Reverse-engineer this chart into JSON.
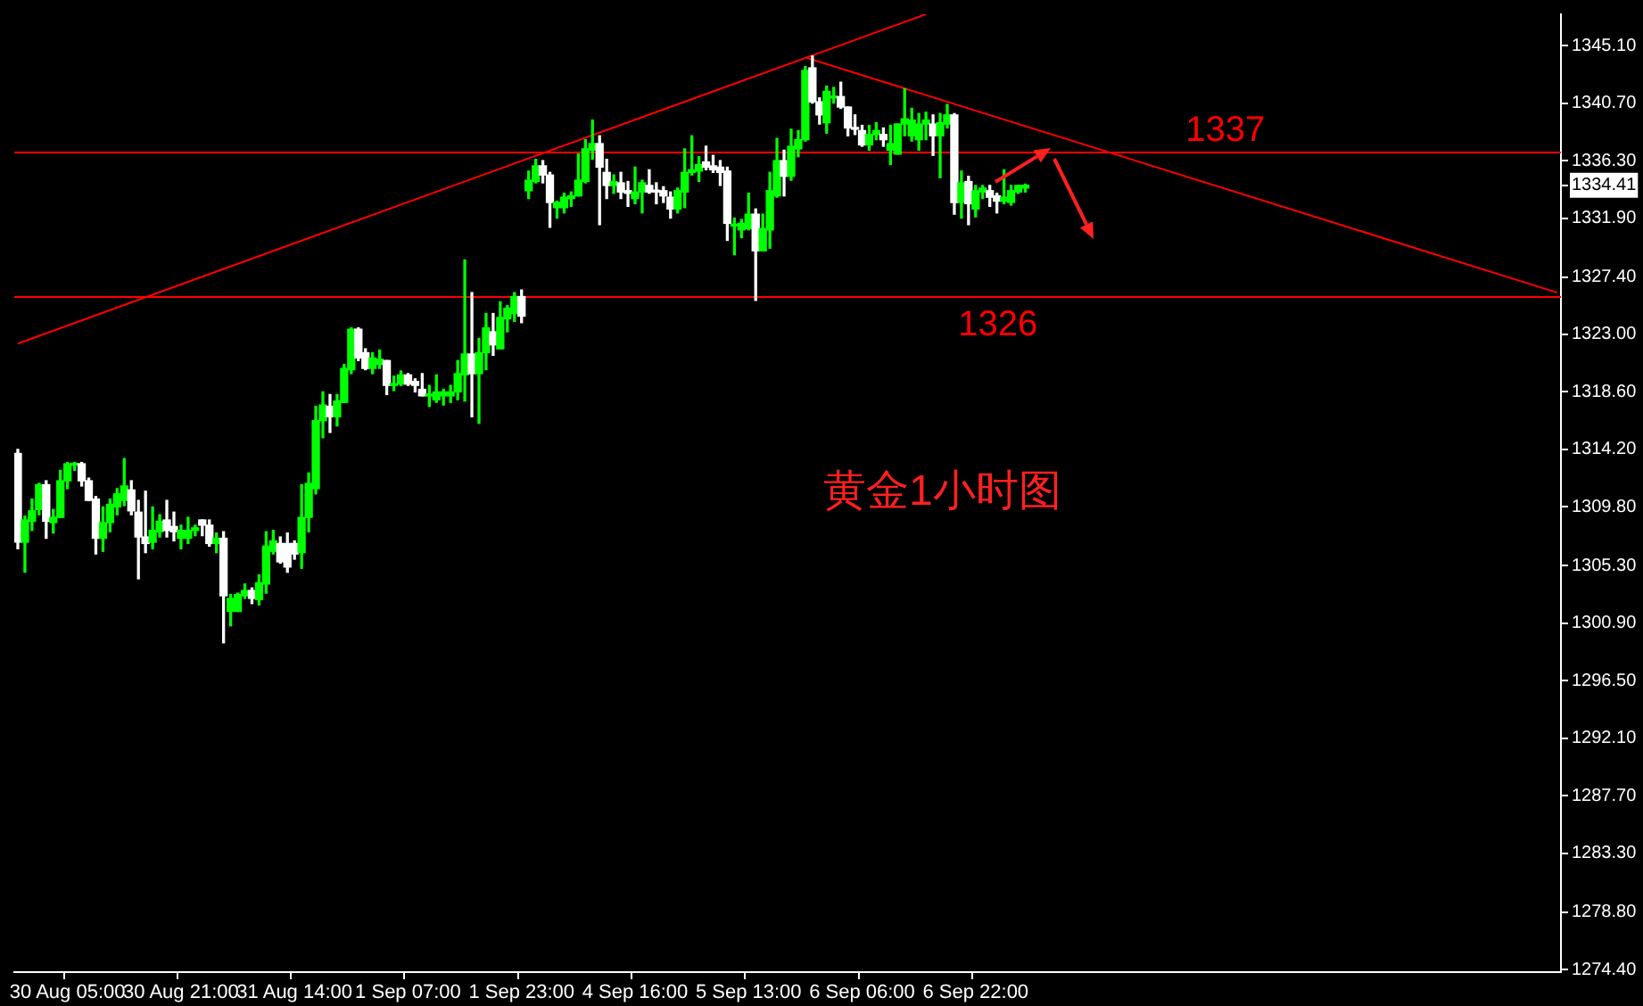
{
  "chart_data": {
    "type": "candlestick",
    "annotations": [
      "黄金1小时图"
    ],
    "categories": [
      null,
      null,
      null,
      null,
      null,
      null,
      null,
      "30 Aug 05:00",
      null,
      null,
      null,
      null,
      null,
      null,
      null,
      null,
      null,
      null,
      null,
      null,
      null,
      null,
      null,
      "30 Aug 21:00",
      null,
      null,
      null,
      null,
      null,
      null,
      null,
      null,
      null,
      null,
      null,
      null,
      null,
      null,
      null,
      "31 Aug 14:00",
      null,
      null,
      null,
      null,
      null,
      null,
      null,
      null,
      null,
      null,
      null,
      null,
      null,
      null,
      null,
      "1 Sep 07:00",
      null,
      null,
      null,
      null,
      null,
      null,
      null,
      null,
      null,
      null,
      null,
      null,
      null,
      null,
      null,
      "1 Sep 23:00",
      null,
      null,
      null,
      null,
      null,
      null,
      null,
      null,
      null,
      null,
      null,
      null,
      null,
      null,
      null,
      "4 Sep 16:00",
      null,
      null,
      null,
      null,
      null,
      null,
      null,
      null,
      null,
      null,
      null,
      null,
      null,
      null,
      null,
      "5 Sep 13:00",
      null,
      null,
      null,
      null,
      null,
      null,
      null,
      null,
      null,
      null,
      null,
      null,
      null,
      null,
      null,
      "6 Sep 06:00",
      null,
      null,
      null,
      null,
      null,
      null,
      null,
      null,
      null,
      null,
      null,
      null,
      null,
      null,
      null,
      "6 Sep 22:00",
      null,
      null,
      null,
      null,
      null,
      null,
      null,
      null,
      null,
      null,
      null,
      null,
      null,
      null,
      null,
      null,
      null,
      null,
      null,
      null,
      null,
      null,
      null,
      null,
      null,
      null,
      null,
      null,
      null,
      null,
      null,
      null,
      null,
      null,
      null,
      null,
      null,
      null,
      null,
      null,
      null,
      null,
      null,
      null,
      null,
      null,
      null,
      null,
      null,
      null,
      null,
      null,
      null,
      null,
      null,
      null,
      null,
      null,
      null,
      null,
      null,
      null,
      null,
      null,
      null,
      null,
      null,
      null,
      null,
      null,
      null,
      null,
      null,
      null,
      null,
      null,
      null,
      null,
      null,
      null,
      null,
      null
    ],
    "ohlc": [
      [
        1313.9,
        1314.2,
        1306.6,
        1307.1
      ],
      [
        1307.1,
        1309.1,
        1304.8,
        1308.8
      ],
      [
        1308.7,
        1310.4,
        1308.0,
        1309.5
      ],
      [
        1309.6,
        1311.6,
        1309.2,
        1311.5
      ],
      [
        1311.5,
        1311.8,
        1307.4,
        1308.7
      ],
      [
        1308.6,
        1309.6,
        1307.8,
        1309.0
      ],
      [
        1309.0,
        1312.6,
        1309.0,
        1311.8
      ],
      [
        1311.8,
        1313.2,
        1311.2,
        1313.1
      ],
      [
        1313.0,
        1313.2,
        1312.6,
        1313.1
      ],
      [
        1313.1,
        1313.2,
        1311.4,
        1311.8
      ],
      [
        1311.8,
        1312.0,
        1310.3,
        1310.3
      ],
      [
        1310.4,
        1310.6,
        1306.2,
        1307.4
      ],
      [
        1307.4,
        1309.8,
        1306.4,
        1308.6
      ],
      [
        1308.6,
        1310.4,
        1307.9,
        1310.0
      ],
      [
        1309.8,
        1311.2,
        1309.2,
        1310.8
      ],
      [
        1310.3,
        1313.5,
        1309.9,
        1311.4
      ],
      [
        1311.1,
        1311.8,
        1309.2,
        1309.5
      ],
      [
        1309.4,
        1310.3,
        1304.3,
        1307.5
      ],
      [
        1307.5,
        1311.0,
        1306.3,
        1307.0
      ],
      [
        1307.1,
        1309.8,
        1306.6,
        1308.0
      ],
      [
        1307.9,
        1309.2,
        1307.5,
        1308.7
      ],
      [
        1308.8,
        1310.3,
        1307.5,
        1308.0
      ],
      [
        1308.3,
        1309.4,
        1307.2,
        1307.9
      ],
      [
        1307.4,
        1308.4,
        1306.6,
        1308.0
      ],
      [
        1307.4,
        1309.0,
        1307.0,
        1308.0
      ],
      [
        1308.0,
        1308.4,
        1307.6,
        1308.2
      ],
      [
        1308.8,
        1308.8,
        1307.6,
        1308.4
      ],
      [
        1308.4,
        1308.8,
        1306.8,
        1307.0
      ],
      [
        1307.0,
        1307.8,
        1306.3,
        1307.4
      ],
      [
        1307.4,
        1307.9,
        1299.4,
        1303.0
      ],
      [
        1301.8,
        1303.1,
        1300.7,
        1302.8
      ],
      [
        1301.8,
        1303.2,
        1301.8,
        1303.1
      ],
      [
        1303.0,
        1303.9,
        1302.8,
        1303.4
      ],
      [
        1303.4,
        1303.6,
        1302.4,
        1302.8
      ],
      [
        1302.7,
        1304.6,
        1302.3,
        1304.0
      ],
      [
        1303.9,
        1307.9,
        1303.2,
        1306.8
      ],
      [
        1306.4,
        1308.0,
        1306.2,
        1307.2
      ],
      [
        1307.0,
        1307.5,
        1305.5,
        1305.6
      ],
      [
        1307.0,
        1307.8,
        1304.8,
        1305.2
      ],
      [
        1307.0,
        1307.2,
        1305.8,
        1306.2
      ],
      [
        1306.3,
        1311.5,
        1305.1,
        1309.0
      ],
      [
        1309.0,
        1312.4,
        1307.9,
        1311.6
      ],
      [
        1311.2,
        1317.5,
        1310.8,
        1316.4
      ],
      [
        1316.4,
        1318.6,
        1315.1,
        1317.6
      ],
      [
        1317.5,
        1318.4,
        1315.5,
        1316.7
      ],
      [
        1316.7,
        1318.4,
        1316.0,
        1317.9
      ],
      [
        1317.8,
        1320.7,
        1317.8,
        1320.4
      ],
      [
        1320.3,
        1323.5,
        1320.0,
        1323.4
      ],
      [
        1323.4,
        1323.5,
        1321.0,
        1321.2
      ],
      [
        1321.6,
        1321.9,
        1320.3,
        1320.4
      ],
      [
        1320.4,
        1321.6,
        1320.0,
        1321.2
      ],
      [
        1320.7,
        1321.8,
        1320.4,
        1321.1
      ],
      [
        1321.0,
        1321.0,
        1318.4,
        1319.1
      ],
      [
        1319.1,
        1319.8,
        1318.7,
        1319.2
      ],
      [
        1319.2,
        1320.2,
        1319.1,
        1319.9
      ],
      [
        1319.9,
        1320.0,
        1319.1,
        1319.2
      ],
      [
        1319.4,
        1319.6,
        1318.6,
        1319.1
      ],
      [
        1318.8,
        1320.0,
        1318.3,
        1318.3
      ],
      [
        1318.3,
        1319.1,
        1317.5,
        1318.4
      ],
      [
        1318.0,
        1319.9,
        1317.8,
        1318.6
      ],
      [
        1318.3,
        1318.8,
        1317.6,
        1318.6
      ],
      [
        1318.3,
        1319.1,
        1317.8,
        1318.6
      ],
      [
        1318.6,
        1321.0,
        1318.0,
        1320.0
      ],
      [
        1319.9,
        1328.7,
        1317.9,
        1321.5
      ],
      [
        1321.5,
        1326.2,
        1316.7,
        1320.0
      ],
      [
        1320.0,
        1322.7,
        1316.2,
        1321.6
      ],
      [
        1321.6,
        1324.6,
        1320.3,
        1323.5
      ],
      [
        1323.2,
        1324.6,
        1321.4,
        1322.2
      ],
      [
        1321.9,
        1325.5,
        1321.9,
        1324.3
      ],
      [
        1324.2,
        1325.2,
        1323.2,
        1325.0
      ],
      [
        1324.6,
        1326.2,
        1324.0,
        1325.9
      ],
      [
        1325.9,
        1326.4,
        1323.9,
        1324.4
      ],
      [
        1334.0,
        1335.5,
        1333.4,
        1334.8
      ],
      [
        1334.7,
        1336.4,
        1334.6,
        1335.9
      ],
      [
        1335.9,
        1336.3,
        1334.6,
        1335.2
      ],
      [
        1335.2,
        1335.4,
        1331.2,
        1333.1
      ],
      [
        1332.7,
        1333.2,
        1331.9,
        1333.1
      ],
      [
        1332.7,
        1333.8,
        1332.3,
        1333.5
      ],
      [
        1333.4,
        1333.9,
        1332.8,
        1333.6
      ],
      [
        1333.6,
        1336.8,
        1333.6,
        1334.8
      ],
      [
        1334.7,
        1337.9,
        1334.6,
        1337.2
      ],
      [
        1337.1,
        1339.4,
        1336.4,
        1337.6
      ],
      [
        1337.6,
        1338.2,
        1331.4,
        1335.8
      ],
      [
        1335.4,
        1336.4,
        1333.4,
        1334.4
      ],
      [
        1334.4,
        1335.2,
        1333.8,
        1334.7
      ],
      [
        1334.6,
        1335.4,
        1333.4,
        1333.9
      ],
      [
        1334.0,
        1334.7,
        1332.8,
        1333.8
      ],
      [
        1333.4,
        1335.8,
        1333.0,
        1333.9
      ],
      [
        1333.9,
        1334.8,
        1332.3,
        1334.6
      ],
      [
        1334.4,
        1335.6,
        1333.8,
        1333.9
      ],
      [
        1334.0,
        1334.6,
        1333.0,
        1333.9
      ],
      [
        1334.0,
        1334.3,
        1333.1,
        1333.6
      ],
      [
        1333.5,
        1333.9,
        1331.9,
        1332.6
      ],
      [
        1332.6,
        1334.2,
        1332.3,
        1334.0
      ],
      [
        1333.9,
        1337.2,
        1332.7,
        1335.4
      ],
      [
        1335.4,
        1338.2,
        1335.2,
        1335.6
      ],
      [
        1335.5,
        1336.6,
        1334.7,
        1336.0
      ],
      [
        1336.2,
        1337.4,
        1335.6,
        1335.8
      ],
      [
        1335.9,
        1336.7,
        1335.4,
        1335.6
      ],
      [
        1335.8,
        1336.3,
        1334.4,
        1335.4
      ],
      [
        1335.5,
        1335.8,
        1330.2,
        1331.5
      ],
      [
        1331.3,
        1331.9,
        1329.1,
        1331.4
      ],
      [
        1331.0,
        1331.8,
        1330.4,
        1331.5
      ],
      [
        1331.1,
        1333.8,
        1331.0,
        1332.2
      ],
      [
        1332.2,
        1332.6,
        1325.6,
        1329.4
      ],
      [
        1329.4,
        1332.2,
        1329.4,
        1331.1
      ],
      [
        1331.0,
        1335.4,
        1329.6,
        1334.0
      ],
      [
        1333.6,
        1338.0,
        1333.5,
        1336.3
      ],
      [
        1336.3,
        1337.1,
        1333.6,
        1335.1
      ],
      [
        1335.1,
        1338.7,
        1334.8,
        1337.4
      ],
      [
        1337.2,
        1338.6,
        1336.6,
        1337.9
      ],
      [
        1337.9,
        1343.5,
        1337.8,
        1343.2
      ],
      [
        1343.4,
        1344.3,
        1340.7,
        1340.8
      ],
      [
        1340.8,
        1341.1,
        1339.1,
        1339.8
      ],
      [
        1339.2,
        1342.0,
        1338.4,
        1341.6
      ],
      [
        1341.1,
        1341.9,
        1340.7,
        1341.2
      ],
      [
        1341.2,
        1342.3,
        1340.3,
        1340.4
      ],
      [
        1340.4,
        1340.4,
        1338.2,
        1338.8
      ],
      [
        1338.8,
        1339.8,
        1338.3,
        1338.7
      ],
      [
        1338.6,
        1339.0,
        1337.4,
        1337.5
      ],
      [
        1337.5,
        1339.0,
        1337.1,
        1338.3
      ],
      [
        1338.3,
        1339.2,
        1337.9,
        1338.6
      ],
      [
        1338.3,
        1338.8,
        1337.4,
        1337.9
      ],
      [
        1337.1,
        1339.0,
        1336.0,
        1337.6
      ],
      [
        1336.8,
        1339.1,
        1336.8,
        1339.1
      ],
      [
        1339.1,
        1341.8,
        1338.2,
        1339.5
      ],
      [
        1338.2,
        1340.3,
        1337.8,
        1339.4
      ],
      [
        1337.9,
        1339.9,
        1337.1,
        1339.1
      ],
      [
        1339.1,
        1340.0,
        1337.9,
        1339.4
      ],
      [
        1339.1,
        1339.8,
        1336.7,
        1338.2
      ],
      [
        1338.2,
        1339.9,
        1335.0,
        1339.2
      ],
      [
        1339.1,
        1340.6,
        1338.8,
        1339.8
      ],
      [
        1339.8,
        1339.9,
        1332.2,
        1333.1
      ],
      [
        1333.1,
        1335.5,
        1331.9,
        1334.6
      ],
      [
        1334.7,
        1335.1,
        1331.4,
        1333.0
      ],
      [
        1332.6,
        1334.4,
        1332.0,
        1334.0
      ],
      [
        1333.9,
        1334.4,
        1333.4,
        1334.2
      ],
      [
        1334.0,
        1334.4,
        1332.8,
        1333.5
      ],
      [
        1333.6,
        1333.8,
        1332.3,
        1333.2
      ],
      [
        1333.2,
        1335.6,
        1333.0,
        1333.5
      ],
      [
        1333.1,
        1334.4,
        1332.9,
        1334.0
      ],
      [
        1333.9,
        1334.4,
        1333.8,
        1334.4
      ],
      [
        1334.2,
        1334.5,
        1333.9,
        1334.41
      ],
      null,
      null,
      null,
      null,
      null,
      null,
      null,
      null,
      null,
      null,
      null,
      null,
      null,
      null,
      null,
      null,
      null,
      null,
      null,
      null,
      null,
      null,
      null,
      null,
      null,
      null,
      null,
      null,
      null,
      null,
      null,
      null,
      null,
      null,
      null,
      null,
      null,
      null,
      null,
      null,
      null,
      null,
      null,
      null,
      null,
      null,
      null,
      null,
      null,
      null,
      null,
      null,
      null,
      null,
      null,
      null,
      null,
      null,
      null,
      null,
      null,
      null,
      null,
      null,
      null,
      null,
      null,
      null,
      null,
      null,
      null,
      null,
      null,
      null,
      null
    ],
    "colors": [
      "#ffffff",
      "#00ff00",
      "#00ff00",
      "#00ff00",
      "#ffffff",
      "#00ff00",
      "#00ff00",
      "#00ff00",
      "#00ff00",
      "#ffffff",
      "#ffffff",
      "#ffffff",
      "#00ff00",
      "#00ff00",
      "#00ff00",
      "#00ff00",
      "#ffffff",
      "#ffffff",
      "#ffffff",
      "#00ff00",
      "#00ff00",
      "#ffffff",
      "#ffffff",
      "#00ff00",
      "#00ff00",
      "#00ff00",
      "#ffffff",
      "#ffffff",
      "#00ff00",
      "#ffffff",
      "#00ff00",
      "#00ff00",
      "#00ff00",
      "#ffffff",
      "#00ff00",
      "#00ff00",
      "#00ff00",
      "#ffffff",
      "#ffffff",
      "#ffffff",
      "#00ff00",
      "#00ff00",
      "#00ff00",
      "#00ff00",
      "#ffffff",
      "#00ff00",
      "#00ff00",
      "#00ff00",
      "#ffffff",
      "#ffffff",
      "#00ff00",
      "#00ff00",
      "#ffffff",
      "#00ff00",
      "#00ff00",
      "#ffffff",
      "#ffffff",
      "#ffffff",
      "#00ff00",
      "#00ff00",
      "#00ff00",
      "#00ff00",
      "#00ff00",
      "#00ff00",
      "#ffffff",
      "#00ff00",
      "#00ff00",
      "#ffffff",
      "#00ff00",
      "#00ff00",
      "#00ff00",
      "#ffffff",
      "#00ff00",
      "#00ff00",
      "#ffffff",
      "#ffffff",
      "#00ff00",
      "#00ff00",
      "#00ff00",
      "#00ff00",
      "#00ff00",
      "#00ff00",
      "#ffffff",
      "#ffffff",
      "#00ff00",
      "#ffffff",
      "#ffffff",
      "#00ff00",
      "#00ff00",
      "#ffffff",
      "#ffffff",
      "#ffffff",
      "#ffffff",
      "#00ff00",
      "#00ff00",
      "#00ff00",
      "#00ff00",
      "#ffffff",
      "#ffffff",
      "#ffffff",
      "#ffffff",
      "#00ff00",
      "#00ff00",
      "#00ff00",
      "#ffffff",
      "#00ff00",
      "#00ff00",
      "#00ff00",
      "#ffffff",
      "#00ff00",
      "#00ff00",
      "#00ff00",
      "#ffffff",
      "#ffffff",
      "#00ff00",
      "#00ff00",
      "#ffffff",
      "#ffffff",
      "#ffffff",
      "#ffffff",
      "#00ff00",
      "#00ff00",
      "#ffffff",
      "#00ff00",
      "#00ff00",
      "#00ff00",
      "#00ff00",
      "#00ff00",
      "#00ff00",
      "#ffffff",
      "#00ff00",
      "#00ff00",
      "#ffffff",
      "#00ff00",
      "#ffffff",
      "#00ff00",
      "#00ff00",
      "#ffffff",
      "#ffffff",
      "#00ff00",
      "#00ff00",
      "#00ff00",
      "#00ff00",
      null,
      null,
      null,
      null,
      null,
      null,
      null,
      null,
      null,
      null,
      null,
      null,
      null,
      null,
      null,
      null,
      null,
      null,
      null,
      null,
      null,
      null,
      null,
      null,
      null,
      null,
      null,
      null,
      null,
      null,
      null,
      null,
      null,
      null,
      null,
      null,
      null,
      null,
      null,
      null,
      null,
      null,
      null,
      null,
      null,
      null,
      null,
      null,
      null,
      null,
      null,
      null,
      null,
      null,
      null,
      null,
      null,
      null,
      null,
      null,
      null,
      null,
      null,
      null,
      null,
      null,
      null,
      null,
      null,
      null,
      null,
      null,
      null,
      null,
      null
    ],
    "series": [
      {
        "type": "line",
        "color": "#ff0000",
        "values": [
          1322.3,
          null,
          null,
          null,
          null,
          null,
          null,
          null,
          null,
          null,
          null,
          null,
          null,
          null,
          null,
          null,
          null,
          null,
          null,
          null,
          null,
          null,
          null,
          null,
          null,
          null,
          null,
          null,
          null,
          null,
          null,
          null,
          null,
          null,
          null,
          null,
          null,
          null,
          null,
          null,
          null,
          null,
          null,
          null,
          null,
          null,
          null,
          null,
          null,
          null,
          null,
          null,
          null,
          null,
          null,
          null,
          null,
          null,
          null,
          null,
          null,
          null,
          null,
          null,
          null,
          null,
          null,
          null,
          null,
          null,
          null,
          null,
          null,
          null,
          null,
          null,
          null,
          null,
          null,
          null,
          null,
          null,
          null,
          null,
          null,
          null,
          null,
          null,
          null,
          null,
          null,
          null,
          null,
          null,
          null,
          null,
          null,
          null,
          null,
          null,
          null,
          null,
          null,
          null,
          null,
          null,
          null,
          null,
          null,
          null,
          null,
          null,
          null,
          null,
          null,
          null,
          null,
          null,
          null,
          null,
          null,
          null,
          null,
          null,
          null,
          null,
          null,
          null,
          1347.5,
          null,
          null,
          null,
          null,
          null,
          null,
          null,
          null,
          null,
          null,
          null,
          null,
          null,
          null,
          null,
          null,
          null,
          null,
          null,
          null,
          null,
          null,
          null,
          null,
          null,
          null,
          null,
          null,
          null,
          null,
          null,
          null,
          null,
          null,
          null,
          null,
          null,
          null,
          null,
          null,
          null,
          null,
          null,
          null,
          null,
          null,
          null,
          null,
          null,
          null,
          null,
          null,
          null,
          null,
          null,
          null,
          null,
          null,
          null,
          null,
          null,
          null,
          null,
          null,
          null,
          null,
          null,
          null,
          null,
          null,
          null,
          null,
          null,
          null,
          null,
          null,
          null,
          null,
          null,
          null,
          null,
          null,
          null,
          null,
          null,
          null,
          null,
          null,
          null
        ]
      },
      {
        "type": "line",
        "color": "#ff0000",
        "values": [
          null,
          null,
          null,
          null,
          null,
          null,
          null,
          null,
          null,
          null,
          null,
          null,
          null,
          null,
          null,
          null,
          null,
          null,
          null,
          null,
          null,
          null,
          null,
          null,
          null,
          null,
          null,
          null,
          null,
          null,
          null,
          null,
          null,
          null,
          null,
          null,
          null,
          null,
          null,
          null,
          null,
          null,
          null,
          null,
          null,
          null,
          null,
          null,
          null,
          null,
          null,
          null,
          null,
          null,
          null,
          null,
          null,
          null,
          null,
          null,
          null,
          null,
          null,
          null,
          null,
          null,
          null,
          null,
          null,
          null,
          null,
          null,
          null,
          null,
          null,
          null,
          null,
          null,
          null,
          null,
          null,
          null,
          null,
          null,
          null,
          null,
          null,
          null,
          null,
          null,
          null,
          null,
          null,
          null,
          null,
          null,
          null,
          null,
          null,
          null,
          null,
          null,
          null,
          null,
          null,
          null,
          null,
          null,
          null,
          null,
          null,
          1344.2,
          null,
          null,
          null,
          null,
          null,
          null,
          null,
          null,
          null,
          null,
          null,
          null,
          null,
          null,
          null,
          null,
          null,
          null,
          null,
          null,
          null,
          null,
          null,
          null,
          null,
          null,
          null,
          null,
          null,
          null,
          null,
          null,
          null,
          null,
          null,
          null,
          null,
          null,
          null,
          null,
          null,
          null,
          null,
          null,
          null,
          null,
          null,
          null,
          null,
          null,
          null,
          null,
          null,
          null,
          null,
          null,
          null,
          null,
          null,
          null,
          null,
          null,
          null,
          null,
          null,
          null,
          null,
          null,
          null,
          null,
          null,
          null,
          null,
          null,
          null,
          null,
          null,
          null,
          null,
          null,
          null,
          null,
          null,
          null,
          null,
          null,
          null,
          null,
          null,
          null,
          null,
          null,
          null,
          null,
          null,
          null,
          null,
          null,
          null,
          null,
          null,
          null,
          null,
          null,
          null,
          1326.2
        ]
      }
    ],
    "ref_lines": [
      {
        "axis": "y",
        "value": 1337,
        "label": "1337",
        "color": "#ff0000"
      },
      {
        "axis": "y",
        "value": 1326,
        "label": "1326",
        "color": "#ff0000"
      }
    ],
    "ylim": [
      1274.2,
      1347.5
    ],
    "yticks": [
      {
        "value": 1345.1,
        "label": "1345.10"
      },
      {
        "value": 1340.7,
        "label": "1340.70"
      },
      {
        "value": 1336.3,
        "label": "1336.30"
      },
      {
        "value": 1334.41,
        "label": "1334.41"
      },
      {
        "value": 1331.9,
        "label": "1331.90"
      },
      {
        "value": 1327.4,
        "label": "1327.40"
      },
      {
        "value": 1323.0,
        "label": "1323.00"
      },
      {
        "value": 1318.6,
        "label": "1318.60"
      },
      {
        "value": 1314.2,
        "label": "1314.20"
      },
      {
        "value": 1309.8,
        "label": "1309.80"
      },
      {
        "value": 1305.3,
        "label": "1305.30"
      },
      {
        "value": 1300.9,
        "label": "1300.90"
      },
      {
        "value": 1296.5,
        "label": "1296.50"
      },
      {
        "value": 1292.1,
        "label": "1292.10"
      },
      {
        "value": 1287.7,
        "label": "1287.70"
      },
      {
        "value": 1283.3,
        "label": "1283.30"
      },
      {
        "value": 1278.8,
        "label": "1278.80"
      },
      {
        "value": 1274.4,
        "label": "1274.40"
      }
    ],
    "grid": false,
    "legend": false
  }
}
